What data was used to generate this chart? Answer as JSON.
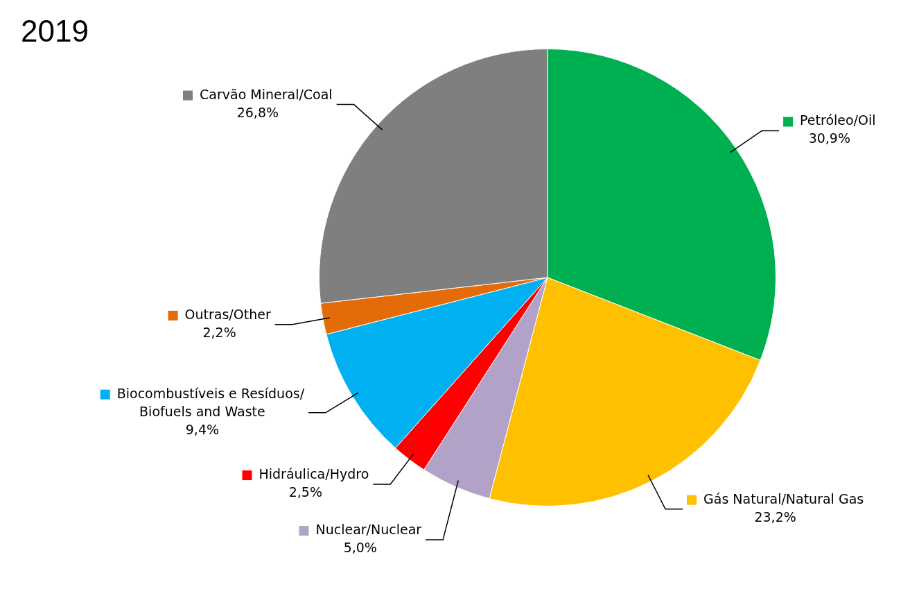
{
  "chart_data": {
    "type": "pie",
    "title": "2019",
    "categories": [
      "Petróleo/Oil",
      "Gás Natural/Natural Gas",
      "Nuclear/Nuclear",
      "Hidráulica/Hydro",
      "Biocombustíveis e Resíduos/Biofuels and Waste",
      "Outras/Other",
      "Carvão Mineral/Coal"
    ],
    "values": [
      30.9,
      23.2,
      5.0,
      2.5,
      9.4,
      2.2,
      26.8
    ],
    "colors": [
      "#00b050",
      "#ffc000",
      "#b3a2c7",
      "#ff0000",
      "#00b0f0",
      "#e36c09",
      "#7f7f7f"
    ],
    "value_labels": [
      "30,9%",
      "23,2%",
      "5,0%",
      "2,5%",
      "9,4%",
      "2,2%",
      "26,8%"
    ],
    "legend": "bottom left"
  }
}
